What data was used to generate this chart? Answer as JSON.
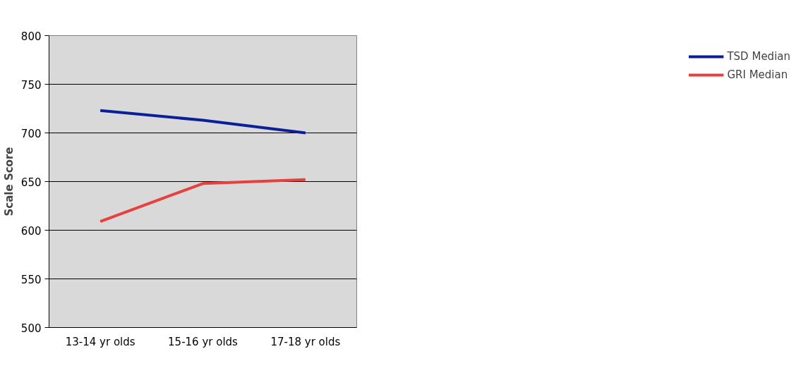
{
  "chart_data": {
    "type": "line",
    "ylabel": "Scale Score",
    "categories": [
      "13-14 yr olds",
      "15-16 yr olds",
      "17-18 yr olds"
    ],
    "series": [
      {
        "name": "TSD Median",
        "color": "#0a1f9a",
        "values": [
          723,
          713,
          700
        ]
      },
      {
        "name": "GRI Median",
        "color": "#e8403f",
        "values": [
          609,
          648,
          652
        ]
      }
    ],
    "ylim": [
      500,
      800
    ],
    "yticks": [
      500,
      550,
      600,
      650,
      700,
      750,
      800
    ],
    "grid": "y",
    "legend": "right",
    "marker": "none",
    "line_style": "solid"
  }
}
